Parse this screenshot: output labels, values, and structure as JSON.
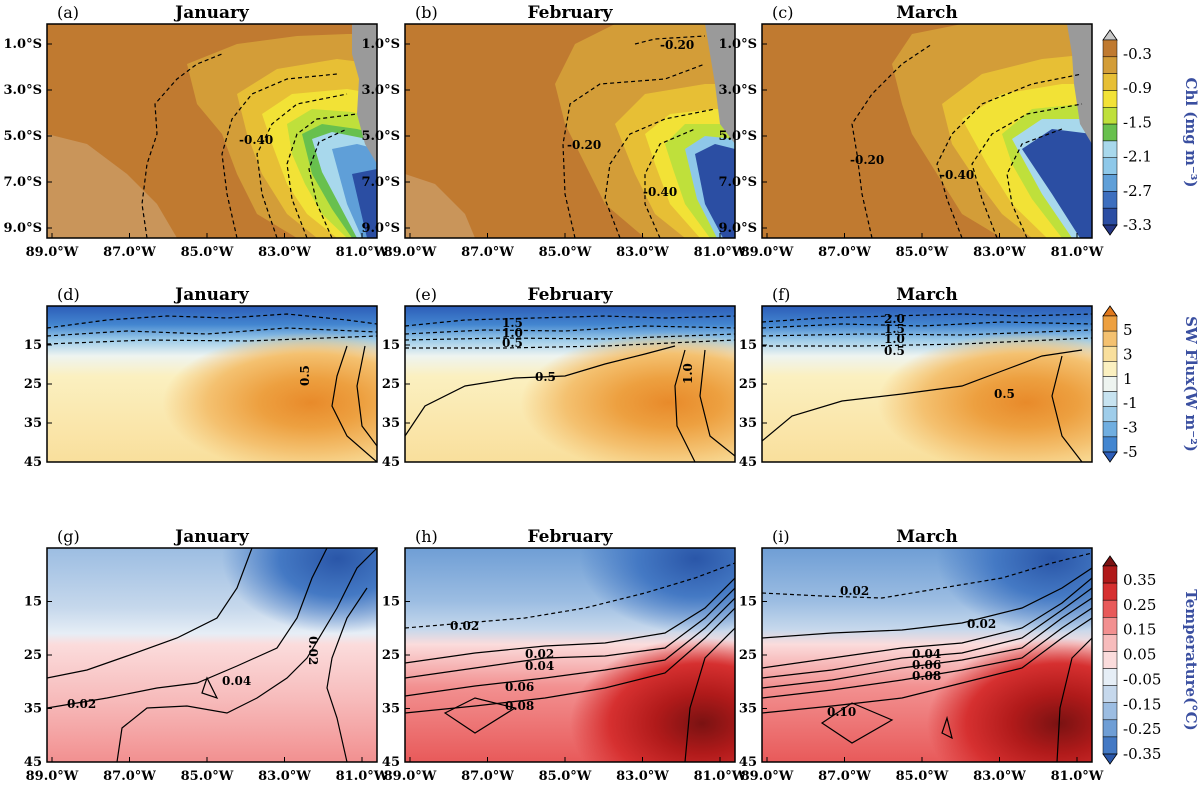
{
  "chart_data": [
    {
      "type": "heatmap",
      "row": "chl",
      "colorbar": {
        "label": "Chl (mg m⁻³)",
        "ticks": [
          "-0.3",
          "-0.9",
          "-1.5",
          "-2.1",
          "-2.7",
          "-3.3"
        ],
        "colors": [
          "#c8c8c8",
          "#c07a30",
          "#d39d38",
          "#e7bf35",
          "#f2e236",
          "#bfe03b",
          "#68c04e",
          "#a8d8ec",
          "#8ec8e9",
          "#5f9fd8",
          "#3d6fbf",
          "#2b4ea3",
          "#243684"
        ]
      },
      "x_ticks": [
        "89.0°W",
        "87.0°W",
        "85.0°W",
        "83.0°W",
        "81.0°W"
      ],
      "y_ticks": [
        "1.0°S",
        "3.0°S",
        "5.0°S",
        "7.0°S",
        "9.0°S"
      ],
      "panels": [
        {
          "letter": "(a)",
          "title": "January",
          "contour_labels": [
            "-0.40"
          ]
        },
        {
          "letter": "(b)",
          "title": "February",
          "contour_labels": [
            "-0.20",
            "-0.20",
            "-0.40"
          ]
        },
        {
          "letter": "(c)",
          "title": "March",
          "contour_labels": [
            "-0.20",
            "-0.40"
          ]
        }
      ]
    },
    {
      "type": "heatmap",
      "row": "sw",
      "colorbar": {
        "label": "SW Flux(W m⁻²)",
        "ticks": [
          "5",
          "3",
          "1",
          "-1",
          "-3",
          "-5"
        ],
        "colors": [
          "#e0781c",
          "#eda040",
          "#f4c170",
          "#f9df9c",
          "#fbf0c0",
          "#eef4f0",
          "#c7e3f0",
          "#9fcdea",
          "#70aee0",
          "#4386d0",
          "#2c5db8"
        ]
      },
      "x_ticks": [],
      "y_ticks": [
        "15",
        "25",
        "35",
        "45"
      ],
      "panels": [
        {
          "letter": "(d)",
          "title": "January",
          "contour_labels": [
            "0.5"
          ]
        },
        {
          "letter": "(e)",
          "title": "February",
          "contour_labels": [
            "1.5",
            "1.0",
            "0.5",
            "0.5",
            "1.0"
          ]
        },
        {
          "letter": "(f)",
          "title": "March",
          "contour_labels": [
            "2.0",
            "1.5",
            "1.0",
            "0.5",
            "0.5"
          ]
        }
      ]
    },
    {
      "type": "heatmap",
      "row": "temp",
      "colorbar": {
        "label": "Temperature(°C)",
        "ticks": [
          "0.35",
          "0.25",
          "0.15",
          "0.05",
          "-0.05",
          "-0.15",
          "-0.25",
          "-0.35"
        ],
        "colors": [
          "#7a1212",
          "#b01a1a",
          "#d63030",
          "#e85a5a",
          "#f29090",
          "#f7bcbc",
          "#fbdcdc",
          "#e6eef6",
          "#c6d8ec",
          "#9cbde2",
          "#6f9ed5",
          "#4479c4",
          "#2a56a8"
        ]
      },
      "x_ticks": [
        "89.0°W",
        "87.0°W",
        "85.0°W",
        "83.0°W",
        "81.0°W"
      ],
      "y_ticks": [
        "15",
        "25",
        "35",
        "45"
      ],
      "panels": [
        {
          "letter": "(g)",
          "title": "January",
          "contour_labels": [
            "0.02",
            "0.04",
            "0.02"
          ]
        },
        {
          "letter": "(h)",
          "title": "February",
          "contour_labels": [
            "0.02",
            "0.02",
            "0.04",
            "0.06",
            "0.08"
          ]
        },
        {
          "letter": "(i)",
          "title": "March",
          "contour_labels": [
            "0.02",
            "0.02",
            "0.04",
            "0.06",
            "0.08",
            "0.10"
          ]
        }
      ]
    }
  ]
}
